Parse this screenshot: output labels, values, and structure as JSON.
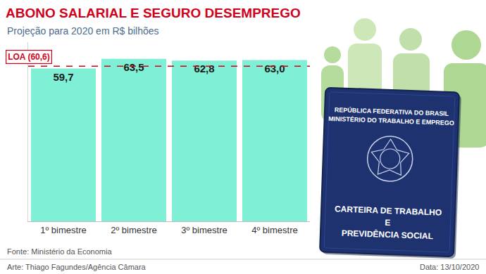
{
  "chart_data": {
    "type": "bar",
    "title": "ABONO SALARIAL E SEGURO DESEMPREGO",
    "subtitle": "Projeção para 2020 em R$ bilhões",
    "categories": [
      "1º bimestre",
      "2º bimestre",
      "3º bimestre",
      "4º bimestre"
    ],
    "values": [
      59.7,
      63.5,
      62.8,
      63.0
    ],
    "value_labels": [
      "59,7",
      "63,5",
      "62,8",
      "63,0"
    ],
    "color": "#7ff0d6",
    "data_labels": true,
    "tick_labels": "x",
    "grid": false,
    "ylim": [
      0,
      70
    ],
    "reference_line": {
      "value": 60.6,
      "label": "LOA (60,6)"
    },
    "source": "Fonte: Ministério da Economia",
    "credit": "Arte: Thiago Fagundes/Agência Câmara",
    "date": "Data: 13/10/2020"
  },
  "illustration": {
    "header": [
      "REPÚBLICA FEDERATIVA DO BRASIL",
      "MINISTÉRIO DO TRABALHO E EMPREGO"
    ],
    "footer": [
      "CARTEIRA DE TRABALHO",
      "E",
      "PREVIDÊNCIA SOCIAL"
    ]
  }
}
